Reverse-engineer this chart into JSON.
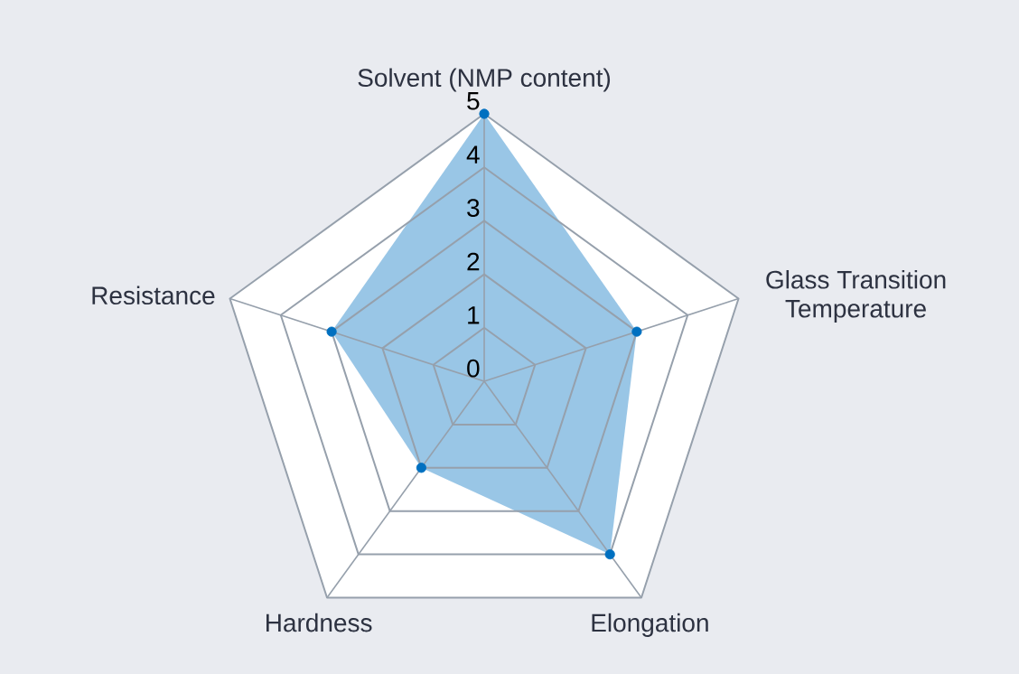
{
  "chart_data": {
    "type": "radar",
    "categories": [
      "Solvent (NMP content)",
      "Glass Transition Temperature",
      "Elongation",
      "Hardness",
      "Resistance"
    ],
    "series": [
      {
        "color": "#0070c0",
        "values": [
          5,
          3,
          4,
          2,
          3
        ]
      }
    ],
    "ylim": [
      0,
      5
    ],
    "yticks": [
      0,
      1,
      2,
      3,
      4,
      5
    ],
    "grid": true,
    "marker": "circle"
  }
}
